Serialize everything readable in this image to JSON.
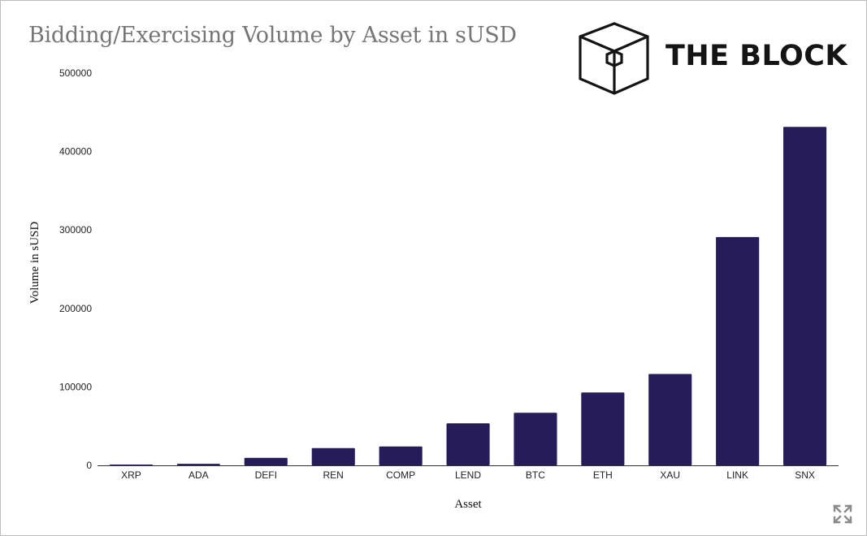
{
  "colors": {
    "bar": "#251c59",
    "axis": "#333333",
    "title": "#767676",
    "logo": "#141414"
  },
  "logo": {
    "text": "THE BLOCK",
    "icon": "cube-logo-icon"
  },
  "expand_icon": "expand-arrows-icon",
  "chart_data": {
    "type": "bar",
    "title": "Bidding/Exercising Volume by Asset in sUSD",
    "xlabel": "Asset",
    "ylabel": "Volume in sUSD",
    "ylim": [
      0,
      500000
    ],
    "yticks": [
      "0",
      "100000",
      "200000",
      "300000",
      "400000",
      "500000"
    ],
    "ytick_values": [
      0,
      100000,
      200000,
      300000,
      400000,
      500000
    ],
    "grid": false,
    "categories": [
      "XRP",
      "ADA",
      "DEFI",
      "REN",
      "COMP",
      "LEND",
      "BTC",
      "ETH",
      "XAU",
      "LINK",
      "SNX"
    ],
    "values": [
      1000,
      2000,
      9500,
      22000,
      24000,
      53500,
      67000,
      93000,
      116500,
      291000,
      431500
    ]
  }
}
